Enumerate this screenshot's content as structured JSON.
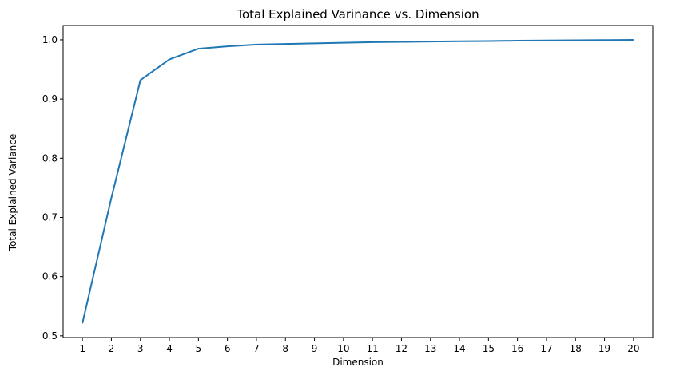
{
  "chart_data": {
    "type": "line",
    "title": "Total Explained Varinance vs. Dimension",
    "xlabel": "Dimension",
    "ylabel": "Total Explained Variance",
    "x": [
      1,
      2,
      3,
      4,
      5,
      6,
      7,
      8,
      9,
      10,
      11,
      12,
      13,
      14,
      15,
      16,
      17,
      18,
      19,
      20
    ],
    "series": [
      {
        "values": [
          0.521,
          0.733,
          0.932,
          0.967,
          0.985,
          0.989,
          0.992,
          0.993,
          0.994,
          0.995,
          0.996,
          0.9965,
          0.997,
          0.9975,
          0.998,
          0.9985,
          0.999,
          0.9993,
          0.9996,
          1.0
        ],
        "color": "#1f77b4"
      }
    ],
    "xlim": [
      0.335,
      20.665
    ],
    "ylim": [
      0.4971,
      1.0242
    ],
    "xticks": [
      "1",
      "2",
      "3",
      "4",
      "5",
      "6",
      "7",
      "8",
      "9",
      "10",
      "11",
      "12",
      "13",
      "14",
      "15",
      "16",
      "17",
      "18",
      "19",
      "20"
    ],
    "yticks": [
      "0.5",
      "0.6",
      "0.7",
      "0.8",
      "0.9",
      "1.0"
    ],
    "grid": false,
    "legend": "none"
  }
}
